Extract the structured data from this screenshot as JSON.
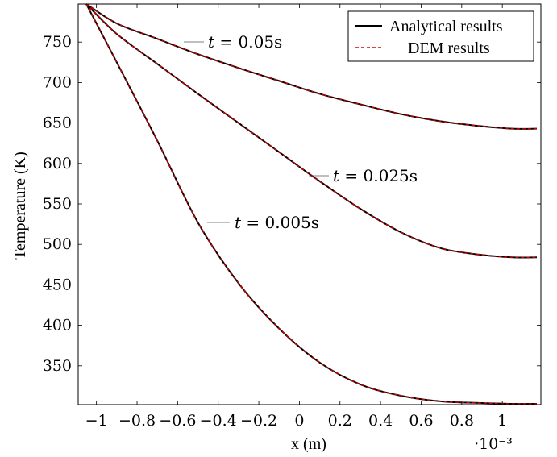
{
  "chart_data": {
    "type": "line",
    "title": "",
    "xlabel": "x (m)",
    "ylabel": "Temperature (K)",
    "x_scale_label": "·10⁻³",
    "x_multiplier": 0.001,
    "xlim": [
      -1.09,
      1.19
    ],
    "ylim": [
      302,
      797
    ],
    "xticks": [
      -1,
      -0.8,
      -0.6,
      -0.4,
      -0.2,
      0,
      0.2,
      0.4,
      0.6,
      0.8,
      1
    ],
    "xtick_labels": [
      "−1",
      "−0.8",
      "−0.6",
      "−0.4",
      "−0.2",
      "0",
      "0.2",
      "0.4",
      "0.6",
      "0.8",
      "1"
    ],
    "yticks": [
      350,
      400,
      450,
      500,
      550,
      600,
      650,
      700,
      750
    ],
    "ytick_labels": [
      "350",
      "400",
      "450",
      "500",
      "550",
      "600",
      "650",
      "700",
      "750"
    ],
    "grid": false,
    "legend_position": "top-right",
    "series": [
      {
        "name": "Analytical results",
        "style": "solid",
        "color": "#000000",
        "curves": [
          {
            "label": "t = 0.05s",
            "x": [
              -1.05,
              -0.9,
              -0.7,
              -0.5,
              -0.3,
              -0.1,
              0.1,
              0.3,
              0.5,
              0.7,
              0.9,
              1.05,
              1.17
            ],
            "y": [
              797,
              773,
              754,
              735,
              718,
              702,
              686,
              673,
              661,
              652,
              646,
              643,
              643
            ]
          },
          {
            "label": "t = 0.025s",
            "x": [
              -1.05,
              -0.9,
              -0.7,
              -0.5,
              -0.3,
              -0.1,
              0.1,
              0.3,
              0.5,
              0.7,
              0.9,
              1.05,
              1.17
            ],
            "y": [
              797,
              760,
              723,
              686,
              650,
              614,
              578,
              544,
              515,
              495,
              487,
              484,
              484
            ]
          },
          {
            "label": "t = 0.005s",
            "x": [
              -1.05,
              -0.9,
              -0.7,
              -0.5,
              -0.3,
              -0.1,
              0.1,
              0.3,
              0.5,
              0.7,
              0.9,
              1.05,
              1.17
            ],
            "y": [
              797,
              725,
              628,
              527,
              452,
              396,
              354,
              327,
              313,
              306,
              304,
              303,
              303
            ]
          }
        ]
      },
      {
        "name": "DEM results",
        "style": "dashed",
        "color": "#d40000",
        "curves": [
          {
            "label": "t = 0.05s",
            "x": [
              -1.05,
              -0.9,
              -0.7,
              -0.5,
              -0.3,
              -0.1,
              0.1,
              0.3,
              0.5,
              0.7,
              0.9,
              1.05,
              1.17
            ],
            "y": [
              797,
              773,
              754,
              735,
              718,
              702,
              686,
              673,
              661,
              652,
              646,
              643,
              643
            ]
          },
          {
            "label": "t = 0.025s",
            "x": [
              -1.05,
              -0.9,
              -0.7,
              -0.5,
              -0.3,
              -0.1,
              0.1,
              0.3,
              0.5,
              0.7,
              0.9,
              1.05,
              1.17
            ],
            "y": [
              797,
              760,
              723,
              686,
              650,
              614,
              578,
              544,
              515,
              495,
              487,
              484,
              484
            ]
          },
          {
            "label": "t = 0.005s",
            "x": [
              -1.05,
              -0.9,
              -0.7,
              -0.5,
              -0.3,
              -0.1,
              0.1,
              0.3,
              0.5,
              0.7,
              0.9,
              1.05,
              1.17
            ],
            "y": [
              797,
              725,
              628,
              527,
              452,
              396,
              354,
              327,
              313,
              306,
              304,
              303,
              303
            ]
          }
        ]
      }
    ],
    "annotations": [
      {
        "t_label": "t",
        "rest_label": " = 0.05s",
        "at_x": -0.6,
        "at_y": 752
      },
      {
        "t_label": "t",
        "rest_label": " = 0.025s",
        "at_x": 0,
        "at_y": 585
      },
      {
        "t_label": "t",
        "rest_label": " = 0.005s",
        "at_x": -0.48,
        "at_y": 527
      }
    ]
  }
}
